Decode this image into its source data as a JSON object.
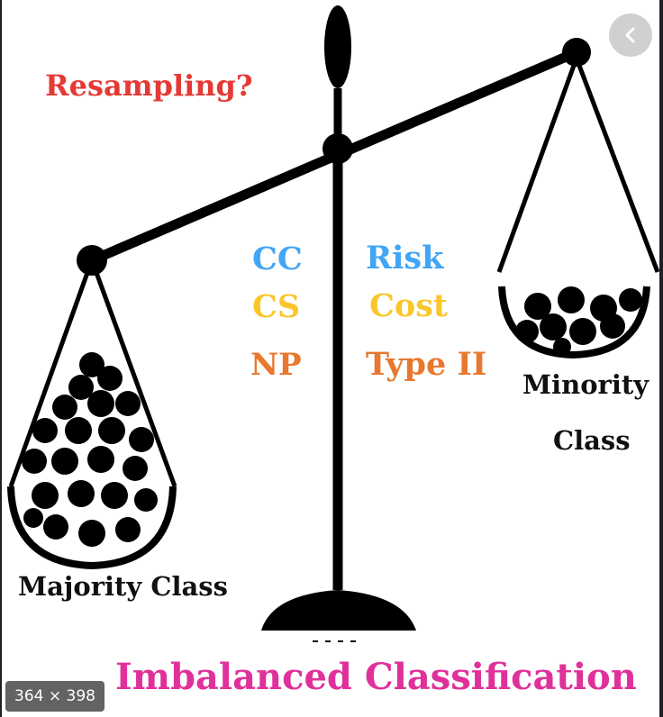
{
  "labels": {
    "resampling": "Resampling?",
    "cc": "CC",
    "cs": "CS",
    "np": "NP",
    "risk": "Risk",
    "cost": "Cost",
    "type_ii": "Type II",
    "minority_line1": "Minority",
    "minority_line2": "Class",
    "majority": "Majority Class",
    "title": "Imbalanced Classification"
  },
  "overlay": {
    "dimensions": "364 × 398",
    "back_icon": "chevron-left-icon"
  },
  "colors": {
    "resampling": "#e53935",
    "blue": "#42a5f5",
    "yellow": "#f9c72b",
    "orange": "#e8782d",
    "magenta": "#e0309a",
    "ink": "#000000"
  }
}
